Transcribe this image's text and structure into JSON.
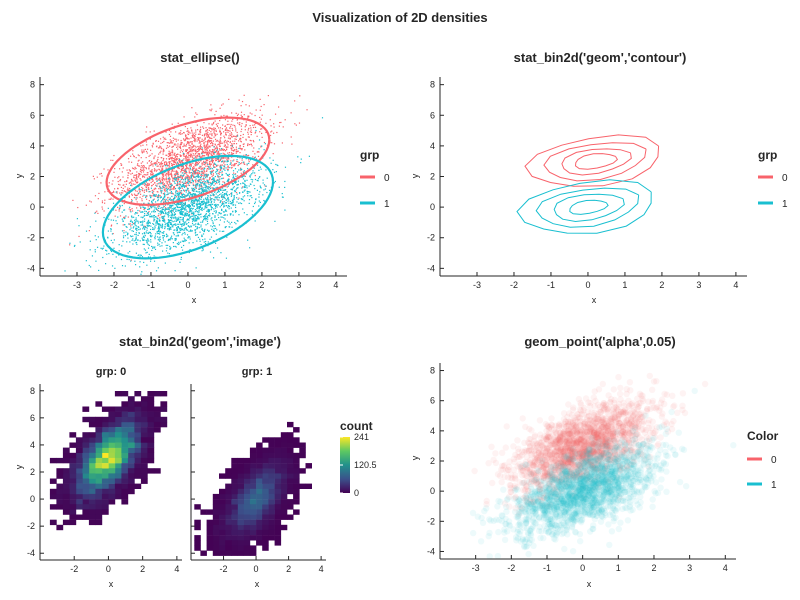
{
  "figure_title": "Visualization of 2D densities",
  "colors": {
    "grp0": "#f8636b",
    "grp1": "#19bfd0",
    "axis": "#262626"
  },
  "chart_data": [
    {
      "type": "scatter",
      "title": "stat_ellipse()",
      "xlabel": "x",
      "ylabel": "y",
      "xlim": [
        -4,
        4.3
      ],
      "ylim": [
        -4.5,
        8.5
      ],
      "xticks": [
        -3,
        -2,
        -1,
        0,
        1,
        2,
        3,
        4
      ],
      "yticks": [
        -4,
        -2,
        0,
        2,
        4,
        6,
        8
      ],
      "legend": {
        "title": "grp",
        "labels": [
          "0",
          "1"
        ]
      },
      "series": [
        {
          "name": "0",
          "mean": [
            0,
            3
          ],
          "sd": [
            1,
            1.5
          ],
          "n": 5000
        },
        {
          "name": "1",
          "mean": [
            0,
            0
          ],
          "sd": [
            1,
            1.5
          ],
          "n": 5000
        }
      ],
      "ellipses": [
        {
          "group": "0",
          "center": [
            0,
            3
          ],
          "x_half_range": 2.2,
          "y_at_x_extremes": [
            1.6,
            4.4
          ],
          "y_range": [
            0.7,
            6.4
          ]
        },
        {
          "group": "1",
          "center": [
            0,
            0
          ],
          "x_half_range": 2.3,
          "y_at_x_extremes": [
            -1.4,
            1.9
          ],
          "y_range": [
            -3.3,
            3.4
          ]
        }
      ]
    },
    {
      "type": "contour",
      "title": "stat_bin2d('geom','contour')",
      "xlabel": "x",
      "ylabel": "y",
      "xlim": [
        -4,
        4.3
      ],
      "ylim": [
        -4.5,
        8.5
      ],
      "xticks": [
        -3,
        -2,
        -1,
        0,
        1,
        2,
        3,
        4
      ],
      "yticks": [
        -4,
        -2,
        0,
        2,
        4,
        6,
        8
      ],
      "legend": {
        "title": "grp",
        "labels": [
          "0",
          "1"
        ]
      },
      "series": [
        {
          "name": "0",
          "center": [
            0.2,
            3.0
          ],
          "levels": [
            {
              "rx": 1.9,
              "ry": 1.5
            },
            {
              "rx": 1.45,
              "ry": 1.1
            },
            {
              "rx": 1.0,
              "ry": 0.75
            },
            {
              "rx": 0.6,
              "ry": 0.45
            }
          ]
        },
        {
          "name": "1",
          "center": [
            0.0,
            0.0
          ],
          "levels": [
            {
              "rx": 1.9,
              "ry": 1.6
            },
            {
              "rx": 1.45,
              "ry": 1.15
            },
            {
              "rx": 1.0,
              "ry": 0.8
            },
            {
              "rx": 0.55,
              "ry": 0.4
            }
          ]
        }
      ]
    },
    {
      "type": "heatmap",
      "title": "stat_bin2d('geom','image')",
      "xlabel": "x",
      "ylabel": "y",
      "xlim": [
        -4,
        4.3
      ],
      "ylim": [
        -4.5,
        8.5
      ],
      "xticks": [
        -2,
        0,
        2,
        4
      ],
      "yticks": [
        -4,
        -2,
        0,
        2,
        4,
        6,
        8
      ],
      "facets": [
        {
          "label": "grp: 0",
          "mean": [
            0,
            3
          ]
        },
        {
          "label": "grp: 1",
          "mean": [
            0,
            0
          ]
        }
      ],
      "colorbar": {
        "title": "count",
        "ticks": [
          0,
          120.5,
          241
        ],
        "labels": [
          "0",
          "120.5",
          "241"
        ],
        "max_count": 241
      },
      "bin_size": 0.38
    },
    {
      "type": "scatter",
      "title": "geom_point('alpha',0.05)",
      "xlabel": "x",
      "ylabel": "y",
      "xlim": [
        -4,
        4.3
      ],
      "ylim": [
        -4.5,
        8.5
      ],
      "xticks": [
        -3,
        -2,
        -1,
        0,
        1,
        2,
        3,
        4
      ],
      "yticks": [
        -4,
        -2,
        0,
        2,
        4,
        6,
        8
      ],
      "alpha": 0.05,
      "legend": {
        "title": "Color",
        "labels": [
          "0",
          "1"
        ]
      },
      "series": [
        {
          "name": "0",
          "mean": [
            0,
            3
          ],
          "sd": [
            1,
            1.5
          ],
          "n": 5000
        },
        {
          "name": "1",
          "mean": [
            0,
            0
          ],
          "sd": [
            1,
            1.5
          ],
          "n": 5000
        }
      ]
    }
  ]
}
